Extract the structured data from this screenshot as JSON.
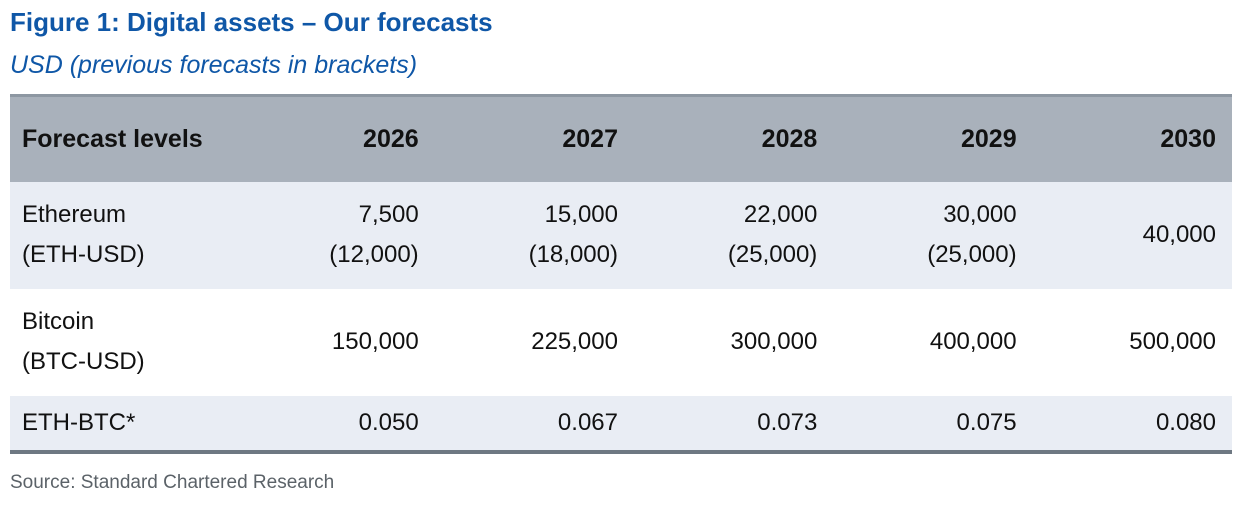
{
  "figure": {
    "title": "Figure 1: Digital assets – Our forecasts",
    "subtitle": "USD (previous forecasts in brackets)",
    "source": "Source: Standard Chartered Research"
  },
  "colors": {
    "title_blue": "#0f57a7",
    "header_bg": "#a9b1bb",
    "header_top_border": "#8d97a2",
    "alt_row_bg": "#e9edf4",
    "bottom_border": "#6e7882",
    "source_gray": "#5b6268"
  },
  "chart_data": {
    "type": "table",
    "title": "Figure 1: Digital assets – Our forecasts",
    "subtitle": "USD (previous forecasts in brackets)",
    "columns": [
      "Forecast levels",
      "2026",
      "2027",
      "2028",
      "2029",
      "2030"
    ],
    "rows": [
      {
        "label": "Ethereum",
        "sublabel": "(ETH-USD)",
        "values": [
          "7,500",
          "15,000",
          "22,000",
          "30,000",
          "40,000"
        ],
        "previous": [
          "(12,000)",
          "(18,000)",
          "(25,000)",
          "(25,000)",
          ""
        ]
      },
      {
        "label": "Bitcoin",
        "sublabel": "(BTC-USD)",
        "values": [
          "150,000",
          "225,000",
          "300,000",
          "400,000",
          "500,000"
        ],
        "previous": [
          "",
          "",
          "",
          "",
          ""
        ]
      },
      {
        "label": "ETH-BTC*",
        "sublabel": "",
        "values": [
          "0.050",
          "0.067",
          "0.073",
          "0.075",
          "0.080"
        ],
        "previous": [
          "",
          "",
          "",
          "",
          ""
        ]
      }
    ],
    "source": "Source: Standard Chartered Research"
  }
}
